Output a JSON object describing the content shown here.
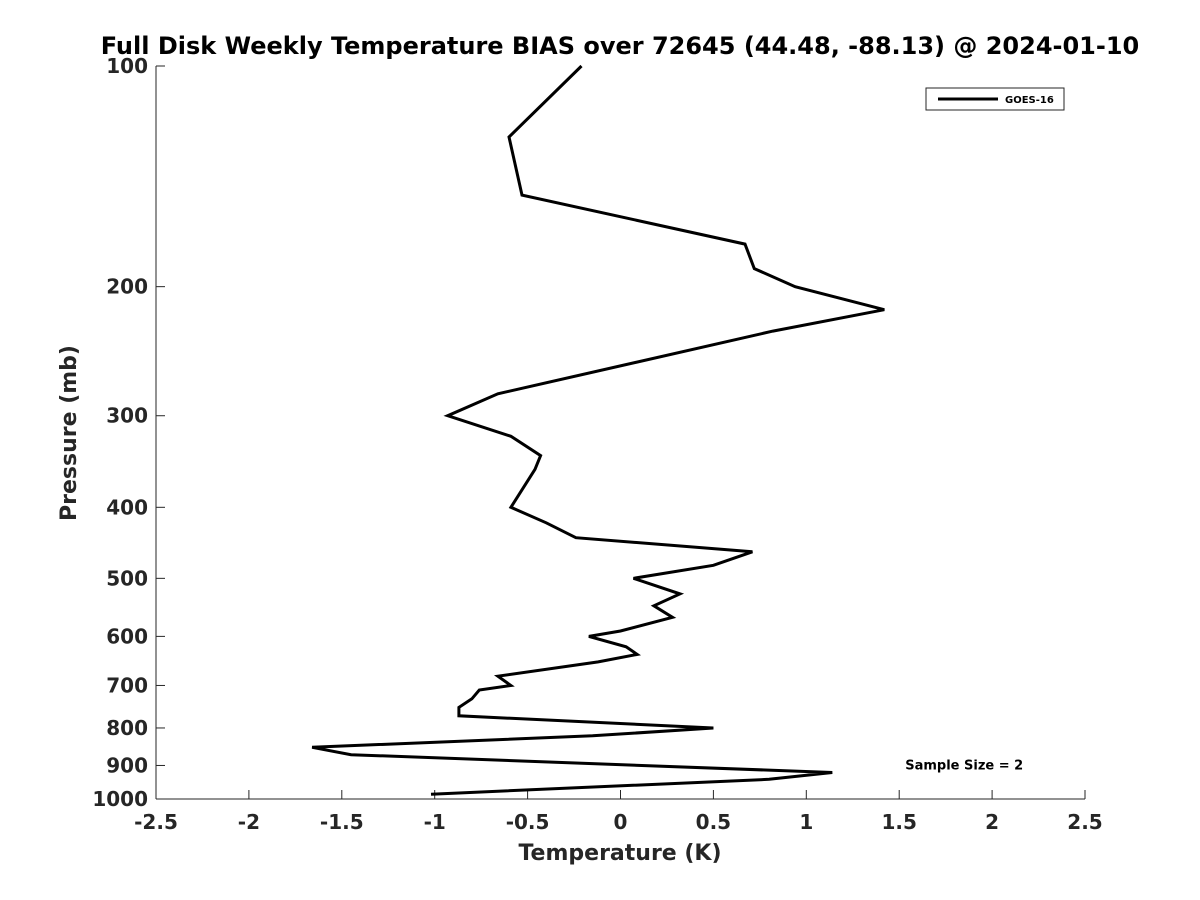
{
  "chart_data": {
    "type": "line",
    "title": "Full Disk Weekly Temperature BIAS over 72645 (44.48, -88.13) @ 2024-01-10",
    "xlabel": "Temperature (K)",
    "ylabel": "Pressure (mb)",
    "xlim": [
      -2.5,
      2.5
    ],
    "ylim": [
      100,
      1000
    ],
    "y_scale": "log",
    "y_reversed": true,
    "grid": false,
    "legend_position": "top-right",
    "xticks": [
      -2.5,
      -2,
      -1.5,
      -1,
      -0.5,
      0,
      0.5,
      1,
      1.5,
      2,
      2.5
    ],
    "xtick_labels": [
      "-2.5",
      "-2",
      "-1.5",
      "-1",
      "-0.5",
      "0",
      "0.5",
      "1",
      "1.5",
      "2",
      "2.5"
    ],
    "yticks": [
      100,
      200,
      300,
      400,
      500,
      600,
      700,
      800,
      900,
      1000
    ],
    "ytick_labels": [
      "100",
      "200",
      "300",
      "400",
      "500",
      "600",
      "700",
      "800",
      "900",
      "1000"
    ],
    "series": [
      {
        "name": "GOES-16",
        "color": "#000000",
        "points": [
          {
            "x": -0.21,
            "p": 100
          },
          {
            "x": -0.6,
            "p": 125
          },
          {
            "x": -0.53,
            "p": 150
          },
          {
            "x": 0.67,
            "p": 175
          },
          {
            "x": 0.72,
            "p": 189
          },
          {
            "x": 0.94,
            "p": 200
          },
          {
            "x": 1.42,
            "p": 215
          },
          {
            "x": 0.82,
            "p": 230
          },
          {
            "x": -0.66,
            "p": 280
          },
          {
            "x": -0.93,
            "p": 300
          },
          {
            "x": -0.59,
            "p": 320
          },
          {
            "x": -0.43,
            "p": 340
          },
          {
            "x": -0.46,
            "p": 355
          },
          {
            "x": -0.59,
            "p": 400
          },
          {
            "x": -0.4,
            "p": 420
          },
          {
            "x": -0.24,
            "p": 440
          },
          {
            "x": 0.71,
            "p": 460
          },
          {
            "x": 0.5,
            "p": 480
          },
          {
            "x": 0.07,
            "p": 500
          },
          {
            "x": 0.32,
            "p": 525
          },
          {
            "x": 0.18,
            "p": 545
          },
          {
            "x": 0.28,
            "p": 565
          },
          {
            "x": 0.0,
            "p": 590
          },
          {
            "x": -0.17,
            "p": 600
          },
          {
            "x": 0.03,
            "p": 620
          },
          {
            "x": 0.09,
            "p": 635
          },
          {
            "x": -0.12,
            "p": 650
          },
          {
            "x": -0.66,
            "p": 680
          },
          {
            "x": -0.59,
            "p": 700
          },
          {
            "x": -0.76,
            "p": 710
          },
          {
            "x": -0.8,
            "p": 730
          },
          {
            "x": -0.87,
            "p": 750
          },
          {
            "x": -0.87,
            "p": 770
          },
          {
            "x": 0.5,
            "p": 800
          },
          {
            "x": -0.15,
            "p": 820
          },
          {
            "x": -1.66,
            "p": 850
          },
          {
            "x": -1.45,
            "p": 870
          },
          {
            "x": 1.14,
            "p": 920
          },
          {
            "x": 0.8,
            "p": 940
          },
          {
            "x": -1.02,
            "p": 985
          }
        ]
      }
    ],
    "annotations": [
      {
        "text": "Sample Size = 2",
        "x": 1.85,
        "p": 900
      }
    ]
  }
}
